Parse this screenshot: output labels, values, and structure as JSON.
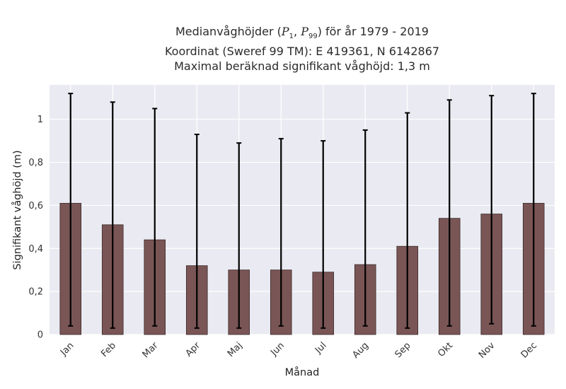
{
  "title": {
    "line1_prefix": "Medianvåghöjder (",
    "p_low_sym": "P",
    "p_low_sub": "1",
    "p_sep": ", ",
    "p_high_sym": "P",
    "p_high_sub": "99",
    "line1_suffix": ") för år 1979 - 2019",
    "line2": "Koordinat (Sweref 99 TM): E 419361, N 6142867",
    "line3": "Maximal beräknad signifikant våghöjd: 1,3 m"
  },
  "chart_data": {
    "type": "bar",
    "xlabel": "Månad",
    "ylabel": "Signifikant våghöjd (m)",
    "ylim": [
      0,
      1.16
    ],
    "yticks": [
      0,
      0.2,
      0.4,
      0.6,
      0.8,
      1
    ],
    "ytick_labels": [
      "0",
      "0,2",
      "0,4",
      "0,6",
      "0,8",
      "1"
    ],
    "grid": true,
    "categories": [
      "Jan",
      "Feb",
      "Mar",
      "Apr",
      "Maj",
      "Jun",
      "Jul",
      "Aug",
      "Sep",
      "Okt",
      "Nov",
      "Dec"
    ],
    "values": [
      0.61,
      0.51,
      0.44,
      0.32,
      0.3,
      0.3,
      0.29,
      0.325,
      0.41,
      0.54,
      0.56,
      0.61
    ],
    "error_low": [
      0.04,
      0.03,
      0.04,
      0.03,
      0.03,
      0.04,
      0.03,
      0.04,
      0.03,
      0.04,
      0.05,
      0.04
    ],
    "error_high": [
      1.12,
      1.08,
      1.05,
      0.93,
      0.89,
      0.91,
      0.9,
      0.95,
      1.03,
      1.09,
      1.11,
      1.12
    ],
    "colors": {
      "bar": "#7a5555",
      "bar_edge": "#3a2a2a",
      "error": "#000000",
      "plot_bg": "#eaeaf2",
      "grid": "#ffffff"
    }
  }
}
